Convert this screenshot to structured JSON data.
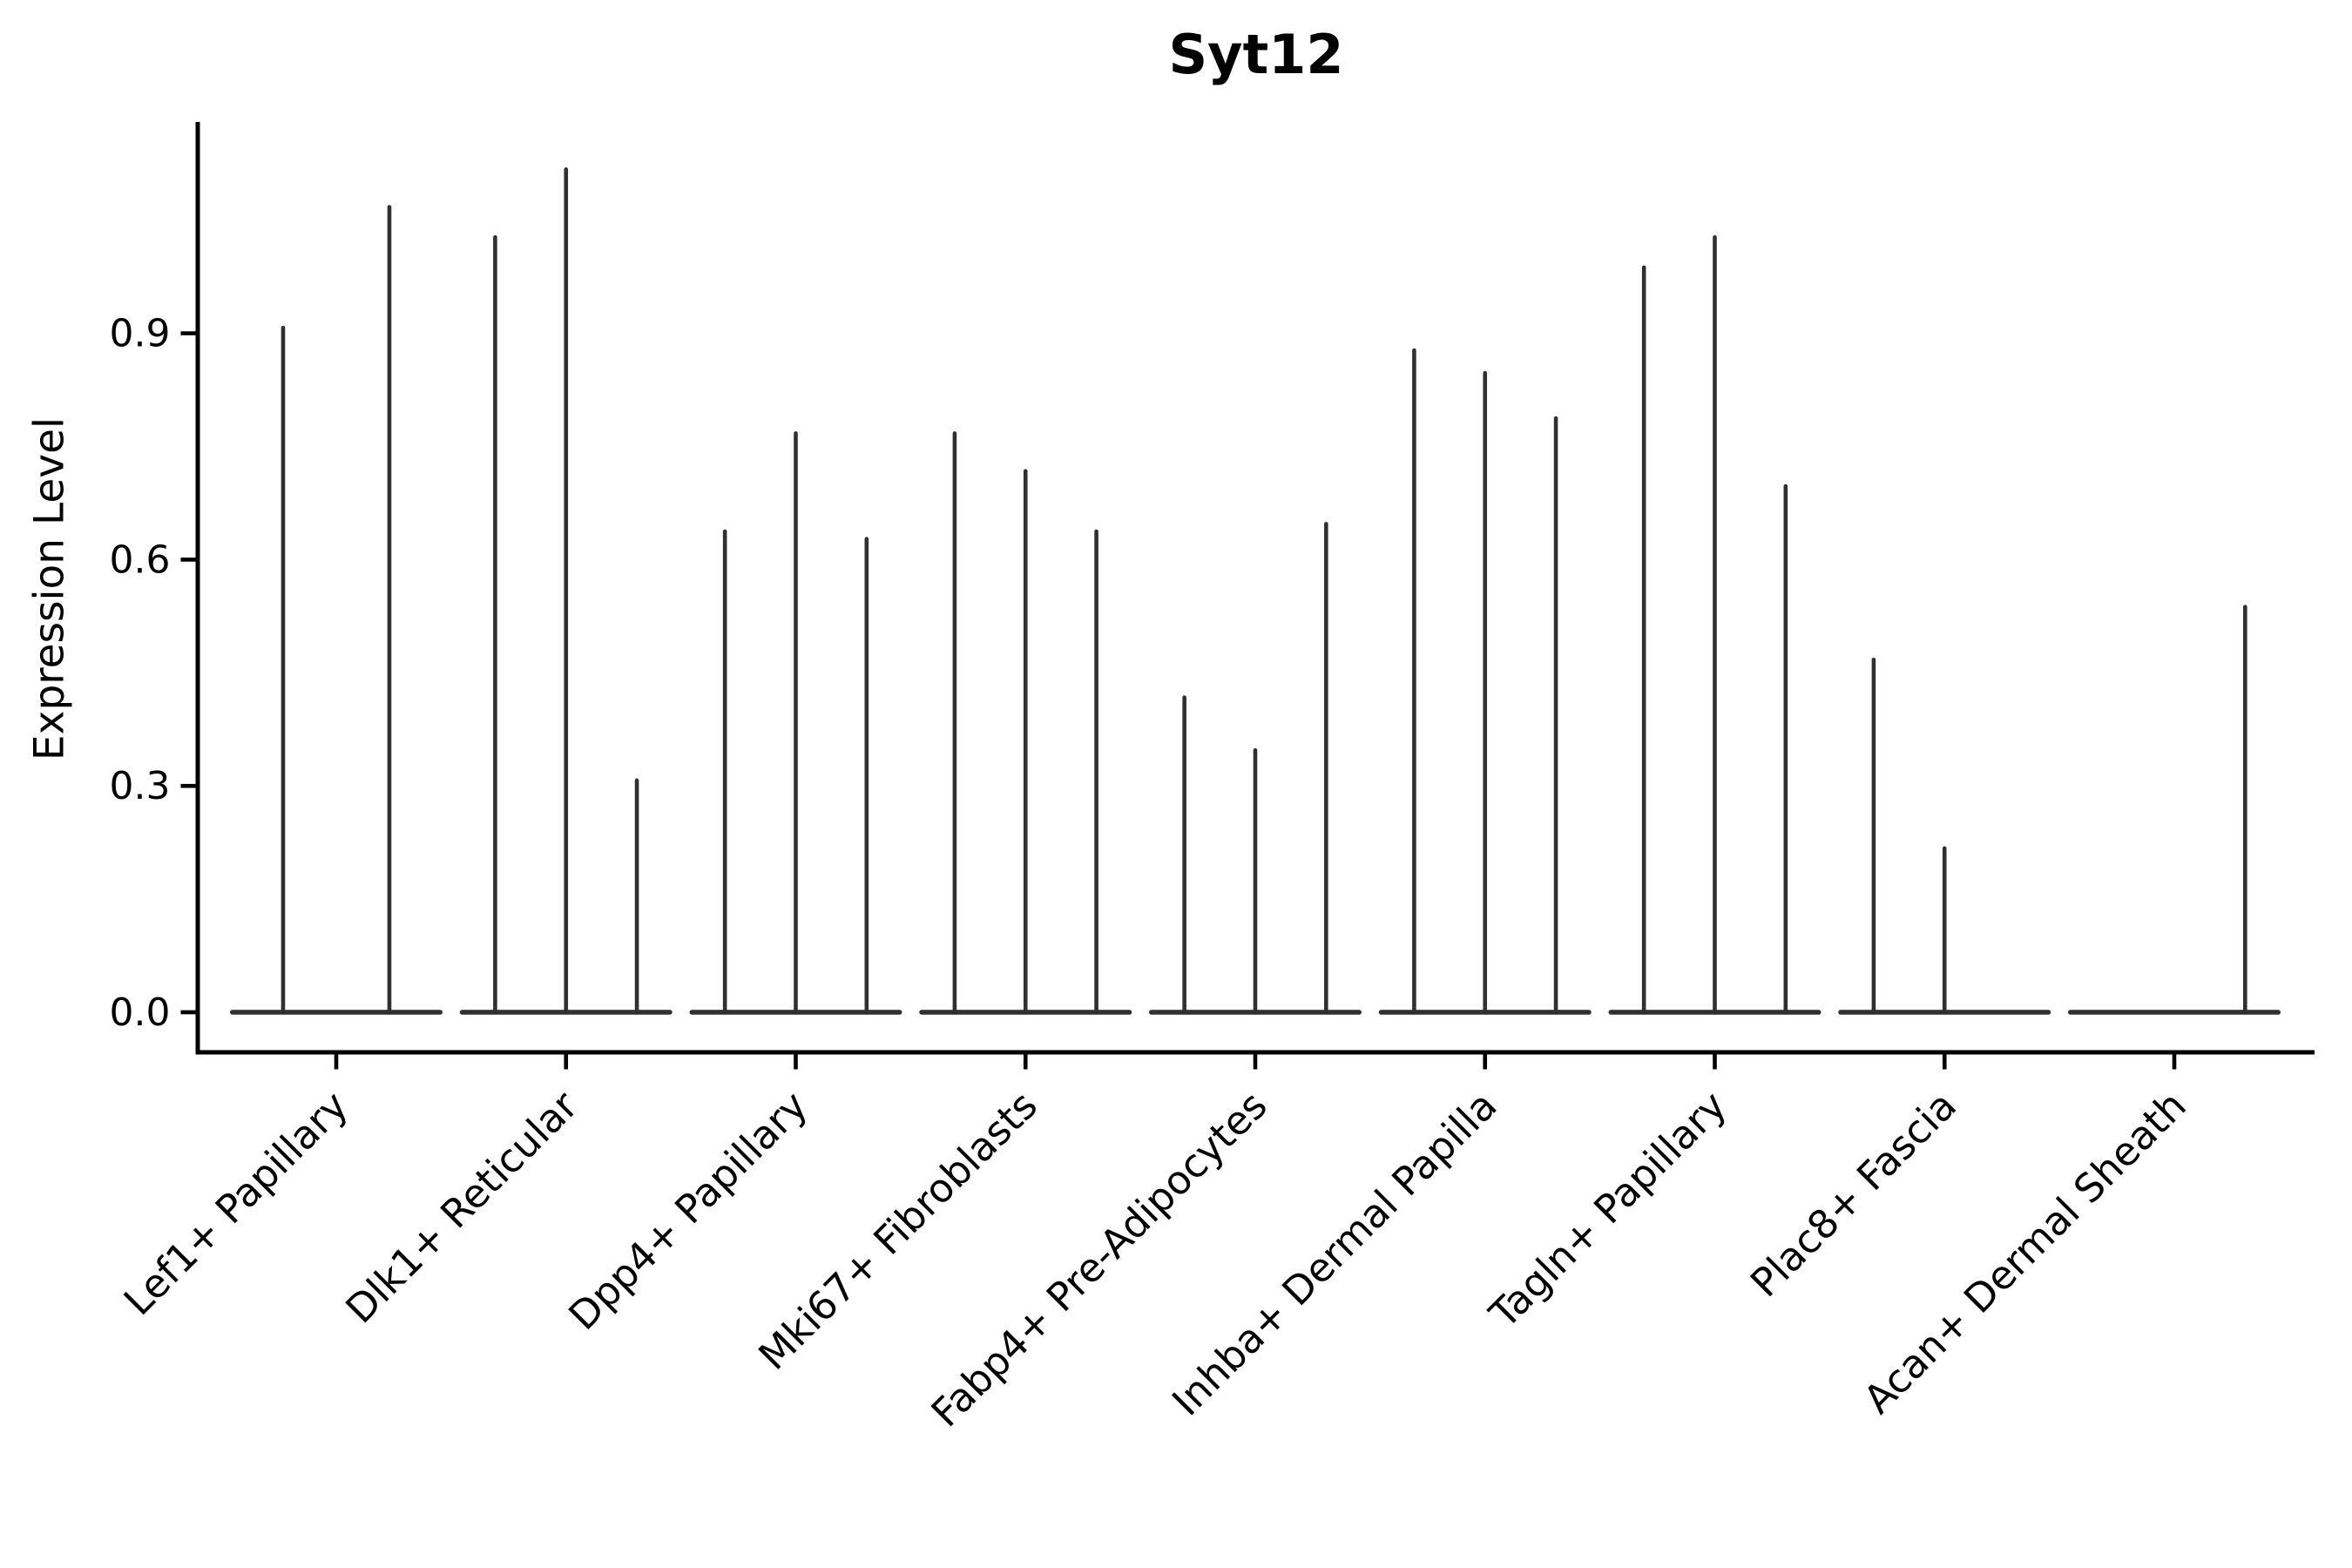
{
  "title": "Syt12",
  "y_axis": {
    "label": "Expression Level",
    "tick_labels": [
      "0.0",
      "0.3",
      "0.6",
      "0.9"
    ],
    "tick_values": [
      0.0,
      0.3,
      0.6,
      0.9
    ]
  },
  "x_axis": {
    "categories": [
      "Lef1+ Papillary",
      "Dlk1+ Reticular",
      "Dpp4+ Papillary",
      "Mki67+ Fibroblasts",
      "Fabp4+ Pre-Adipocytes",
      "Inhba+ Dermal Papilla",
      "Tagln+ Papillary",
      "Plac8+ Fascia",
      "Acan+ Dermal Sheath"
    ]
  },
  "chart_data": {
    "type": "violin",
    "title": "Syt12",
    "xlabel": "",
    "ylabel": "Expression Level",
    "ylim": [
      -0.055,
      1.18
    ],
    "yticks": [
      0.0,
      0.3,
      0.6,
      0.9
    ],
    "grid": false,
    "legend": false,
    "categories": [
      "Lef1+ Papillary",
      "Dlk1+ Reticular",
      "Dpp4+ Papillary",
      "Mki67+ Fibroblasts",
      "Fabp4+ Pre-Adipocytes",
      "Inhba+ Dermal Papilla",
      "Tagln+ Papillary",
      "Plac8+ Fascia",
      "Acan+ Dermal Sheath"
    ],
    "groups": [
      {
        "category": "Lef1+ Papillary",
        "violin_max_values": [
          0.91,
          1.07
        ]
      },
      {
        "category": "Dlk1+ Reticular",
        "violin_max_values": [
          1.03,
          1.12,
          0.31
        ]
      },
      {
        "category": "Dpp4+ Papillary",
        "violin_max_values": [
          0.64,
          0.77,
          0.63
        ]
      },
      {
        "category": "Mki67+ Fibroblasts",
        "violin_max_values": [
          0.77,
          0.72,
          0.64
        ]
      },
      {
        "category": "Fabp4+ Pre-Adipocytes",
        "violin_max_values": [
          0.42,
          0.35,
          0.65
        ]
      },
      {
        "category": "Inhba+ Dermal Papilla",
        "violin_max_values": [
          0.88,
          0.85,
          0.79
        ]
      },
      {
        "category": "Tagln+ Papillary",
        "violin_max_values": [
          0.99,
          1.03,
          0.7
        ]
      },
      {
        "category": "Plac8+ Fascia",
        "violin_max_values": [
          0.47,
          0.22,
          null
        ]
      },
      {
        "category": "Acan+ Dermal Sheath",
        "violin_max_values": [
          null,
          null,
          0.54
        ]
      }
    ],
    "baseline_value": 0.0,
    "violin_color": "#303030",
    "axis_color": "#000000"
  }
}
